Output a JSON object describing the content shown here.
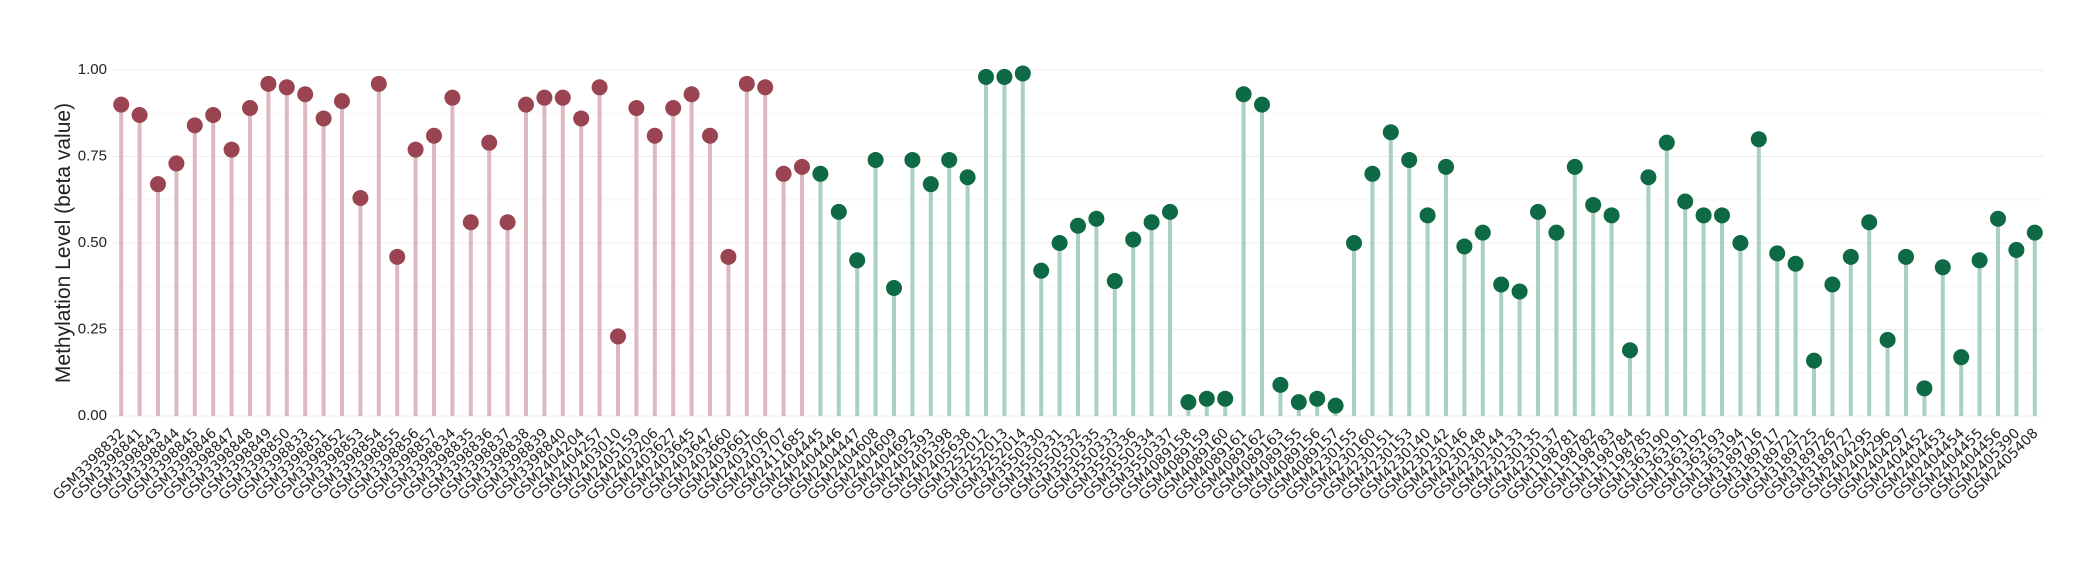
{
  "chart_data": {
    "type": "lollipop",
    "y_label": "Methylation Level (beta value)",
    "categories": [
      "GSM3398832",
      "GSM3398841",
      "GSM3398843",
      "GSM3398844",
      "GSM3398845",
      "GSM3398846",
      "GSM3398847",
      "GSM3398848",
      "GSM3398849",
      "GSM3398850",
      "GSM3398833",
      "GSM3398851",
      "GSM3398852",
      "GSM3398853",
      "GSM3398854",
      "GSM3398855",
      "GSM3398856",
      "GSM3398857",
      "GSM3398834",
      "GSM3398835",
      "GSM3398836",
      "GSM3398837",
      "GSM3398838",
      "GSM3398839",
      "GSM3398840",
      "GSM2404204",
      "GSM2404257",
      "GSM2403010",
      "GSM2405159",
      "GSM2403206",
      "GSM2403627",
      "GSM2403645",
      "GSM2403647",
      "GSM2403660",
      "GSM2403661",
      "GSM2403706",
      "GSM2403707",
      "GSM2411685",
      "GSM2404445",
      "GSM2404446",
      "GSM2404447",
      "GSM2404608",
      "GSM2404609",
      "GSM2404692",
      "GSM2405393",
      "GSM2405398",
      "GSM2405638",
      "GSM3252012",
      "GSM3252013",
      "GSM3252014",
      "GSM3550330",
      "GSM3550331",
      "GSM3550332",
      "GSM3550335",
      "GSM3550333",
      "GSM3550336",
      "GSM3550334",
      "GSM3550337",
      "GSM4089158",
      "GSM4089159",
      "GSM4089160",
      "GSM4089161",
      "GSM4089162",
      "GSM4089163",
      "GSM4089155",
      "GSM4089156",
      "GSM4089157",
      "GSM4230155",
      "GSM4230160",
      "GSM4230151",
      "GSM4230153",
      "GSM4230140",
      "GSM4230142",
      "GSM4230146",
      "GSM4230148",
      "GSM4230144",
      "GSM4230133",
      "GSM4230135",
      "GSM4230137",
      "GSM1198781",
      "GSM1198782",
      "GSM1198783",
      "GSM1198784",
      "GSM1198785",
      "GSM1363190",
      "GSM1363191",
      "GSM1363192",
      "GSM1363193",
      "GSM1363194",
      "GSM3189716",
      "GSM3189717",
      "GSM3189721",
      "GSM3189725",
      "GSM3189726",
      "GSM3189727",
      "GSM2404295",
      "GSM2404296",
      "GSM2404297",
      "GSM2404452",
      "GSM2404453",
      "GSM2404454",
      "GSM2404455",
      "GSM2404456",
      "GSM2405390",
      "GSM2405408"
    ],
    "series": [
      {
        "color": "#9a4452",
        "stem_color": "#dcb9c0",
        "values": [
          0.9,
          0.87,
          0.67,
          0.73,
          0.84,
          0.87,
          0.77,
          0.89,
          0.96,
          0.95,
          0.93,
          0.86,
          0.91,
          0.63,
          0.96,
          0.46,
          0.77,
          0.81,
          0.92,
          0.56,
          0.79,
          0.56,
          0.9,
          0.92,
          0.92,
          0.86,
          0.95,
          0.23,
          0.89,
          0.81,
          0.89,
          0.93,
          0.81,
          0.46,
          0.96,
          0.95,
          0.7,
          0.72,
          null,
          null,
          null,
          null,
          null,
          null,
          null,
          null,
          null,
          null,
          null,
          null,
          null,
          null,
          null,
          null,
          null,
          null,
          null,
          null,
          null,
          null,
          null,
          null,
          null,
          null,
          null,
          null,
          null,
          null,
          null,
          null,
          null,
          null,
          null,
          null,
          null,
          null,
          null,
          null,
          null,
          null,
          null,
          null,
          null,
          null,
          null,
          null,
          null,
          null,
          null,
          null,
          null,
          null,
          null,
          null,
          null,
          null,
          null,
          null,
          null,
          null,
          null,
          null,
          null,
          null,
          null
        ]
      },
      {
        "color": "#0d6a44",
        "stem_color": "#a9d0c0",
        "values": [
          null,
          null,
          null,
          null,
          null,
          null,
          null,
          null,
          null,
          null,
          null,
          null,
          null,
          null,
          null,
          null,
          null,
          null,
          null,
          null,
          null,
          null,
          null,
          null,
          null,
          null,
          null,
          null,
          null,
          null,
          null,
          null,
          null,
          null,
          null,
          null,
          null,
          null,
          0.7,
          0.59,
          0.45,
          0.74,
          0.37,
          0.74,
          0.67,
          0.74,
          0.69,
          0.98,
          0.98,
          0.99,
          0.42,
          0.5,
          0.55,
          0.57,
          0.39,
          0.51,
          0.56,
          0.59,
          0.04,
          0.05,
          0.05,
          0.93,
          0.9,
          0.09,
          0.04,
          0.05,
          0.03,
          0.5,
          0.7,
          0.82,
          0.74,
          0.58,
          0.72,
          0.49,
          0.53,
          0.38,
          0.36,
          0.59,
          0.53,
          0.72,
          0.61,
          0.58,
          0.19,
          0.69,
          0.79,
          0.62,
          0.58,
          0.58,
          0.5,
          0.8,
          0.47,
          0.44,
          0.16,
          0.38,
          0.46,
          0.56,
          0.22,
          0.46,
          0.08,
          0.43,
          0.17,
          0.45,
          0.57,
          0.48,
          0.53
        ]
      }
    ],
    "ylim": [
      0,
      1
    ],
    "yticks": [
      {
        "value": 0,
        "label": "0.00"
      },
      {
        "value": 0.25,
        "label": "0.25"
      },
      {
        "value": 0.5,
        "label": "0.50"
      },
      {
        "value": 0.75,
        "label": "0.75"
      },
      {
        "value": 1,
        "label": "1.00"
      }
    ],
    "grid": true
  }
}
